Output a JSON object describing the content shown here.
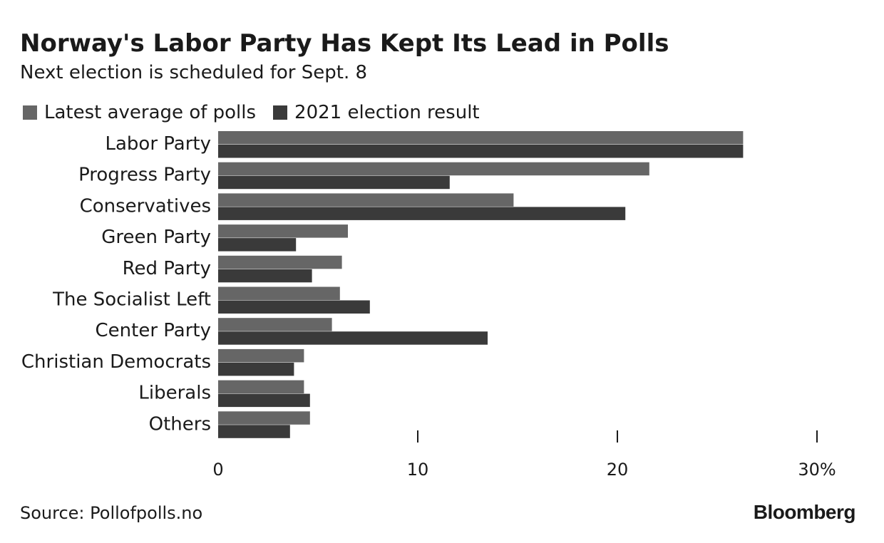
{
  "colors": {
    "latest": "#666666",
    "result": "#3a3a3a",
    "text": "#1a1a1a",
    "tick": "#1a1a1a"
  },
  "chart_data": {
    "type": "bar",
    "orientation": "horizontal",
    "title": "Norway's Labor Party Has Kept Its Lead in Polls",
    "subtitle": "Next election is scheduled for Sept. 8",
    "categories": [
      "Labor Party",
      "Progress Party",
      "Conservatives",
      "Green Party",
      "Red Party",
      "The Socialist Left",
      "Center Party",
      "Christian Democrats",
      "Liberals",
      "Others"
    ],
    "series": [
      {
        "name": "Latest average of polls",
        "color": "#666666",
        "values": [
          26.3,
          21.6,
          14.8,
          6.5,
          6.2,
          6.1,
          5.7,
          4.3,
          4.3,
          4.6
        ]
      },
      {
        "name": "2021 election result",
        "color": "#3a3a3a",
        "values": [
          26.3,
          11.6,
          20.4,
          3.9,
          4.7,
          7.6,
          13.5,
          3.8,
          4.6,
          3.6
        ]
      }
    ],
    "xlim": [
      0,
      30
    ],
    "xticks": [
      0,
      10,
      20,
      30
    ],
    "xtick_labels": [
      "0",
      "10",
      "20",
      "30%"
    ],
    "legend_position": "top-left",
    "grid": false
  },
  "footer": {
    "source": "Source: Pollofpolls.no",
    "brand": "Bloomberg"
  }
}
